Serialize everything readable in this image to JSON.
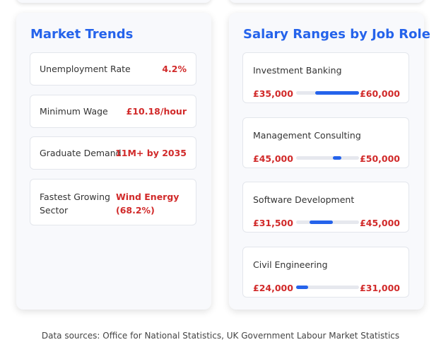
{
  "market_trends": {
    "title": "Market Trends",
    "items": [
      {
        "label": "Unemployment Rate",
        "value": "4.2%"
      },
      {
        "label": "Minimum Wage",
        "value": "£10.18/hour"
      },
      {
        "label": "Graduate Demand",
        "value": "11M+ by 2035"
      },
      {
        "label": "Fastest Growing Sector",
        "value": "Wind Energy (68.2%)"
      }
    ]
  },
  "salary_ranges": {
    "title": "Salary Ranges by Job Role",
    "roles": [
      {
        "name": "Investment Banking",
        "min": {
          "value": 35000,
          "label": "£35,000"
        },
        "max": {
          "value": 60000,
          "label": "£60,000"
        }
      },
      {
        "name": "Management Consulting",
        "min": {
          "value": 45000,
          "label": "£45,000"
        },
        "max": {
          "value": 50000,
          "label": "£50,000"
        }
      },
      {
        "name": "Software Development",
        "min": {
          "value": 31500,
          "label": "£31,500"
        },
        "max": {
          "value": 45000,
          "label": "£45,000"
        }
      },
      {
        "name": "Civil Engineering",
        "min": {
          "value": 24000,
          "label": "£24,000"
        },
        "max": {
          "value": 31000,
          "label": "£31,000"
        }
      }
    ]
  },
  "footer": "Data sources: Office for National Statistics, UK Government Labour Market Statistics"
}
